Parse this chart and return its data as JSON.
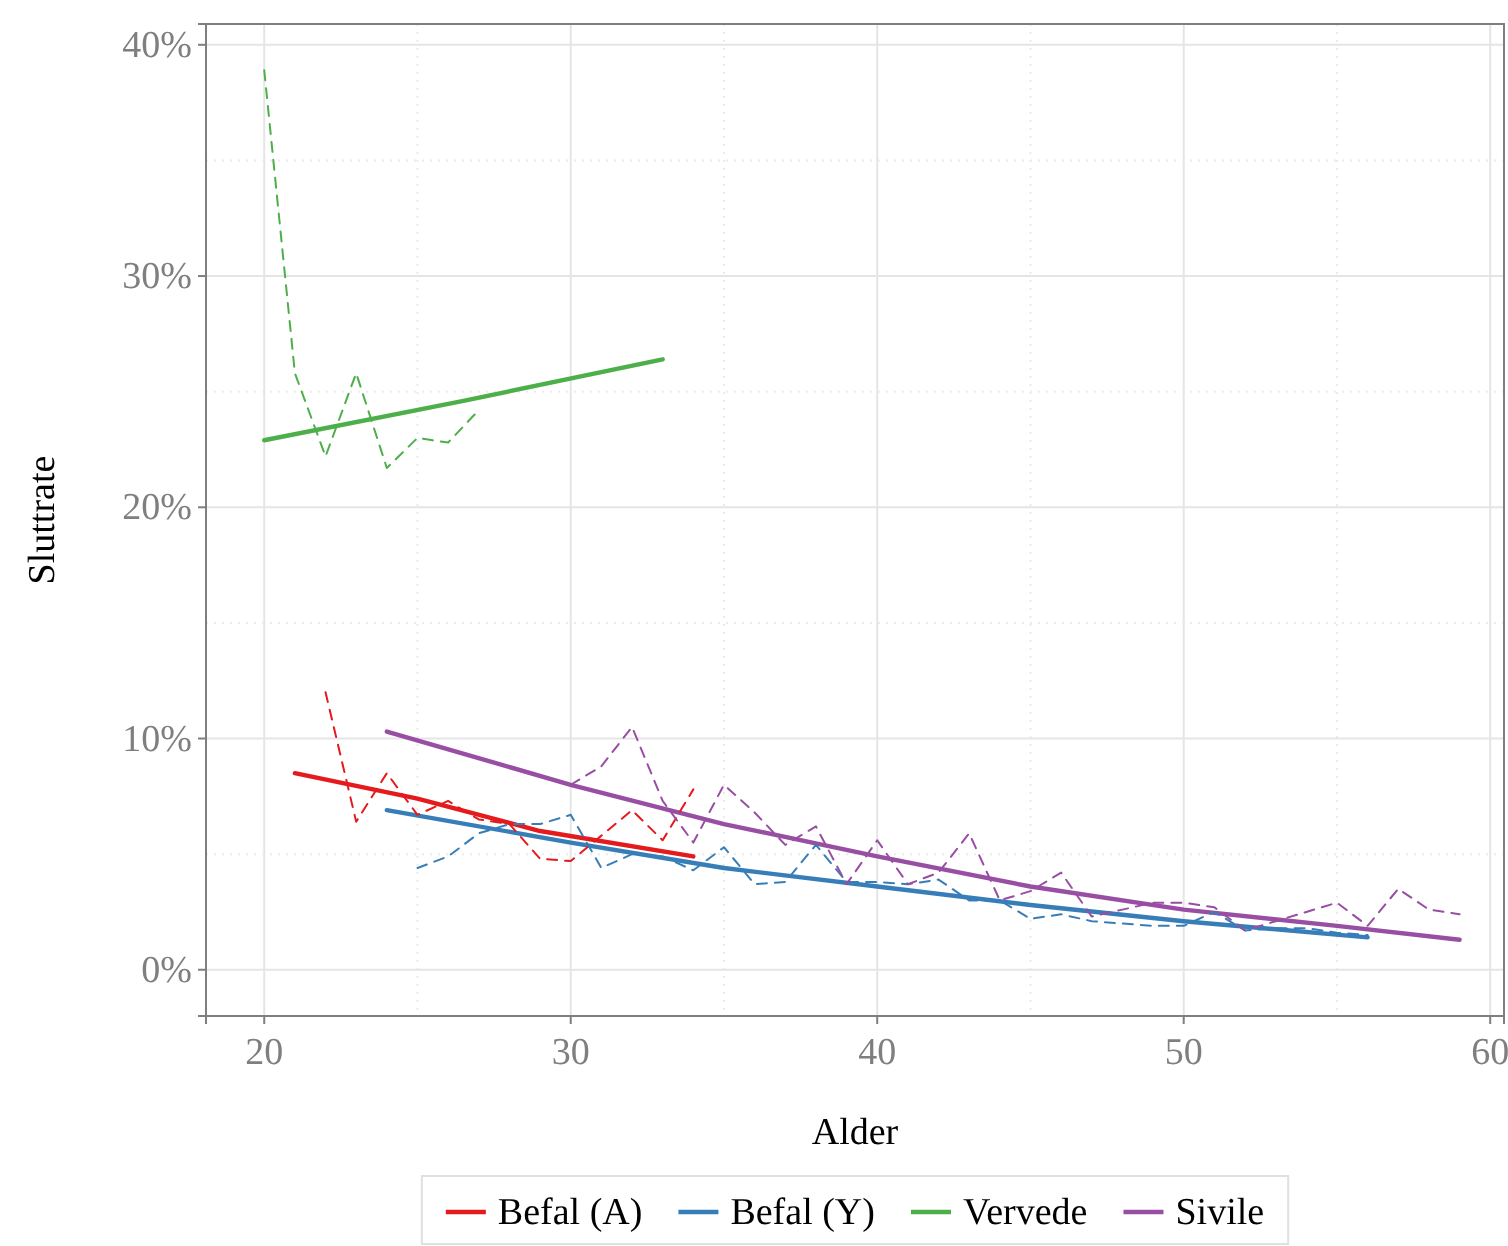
{
  "chart_data": {
    "type": "line",
    "xlabel": "Alder",
    "ylabel": "Sluttrate",
    "xlim": [
      18.1,
      60.45
    ],
    "xticks": [
      20,
      30,
      40,
      50,
      60
    ],
    "ylim": [
      -2.0,
      40.9
    ],
    "yticks": [
      {
        "value": 0,
        "label": "0%"
      },
      {
        "value": 10,
        "label": "10%"
      },
      {
        "value": 20,
        "label": "20%"
      },
      {
        "value": 30,
        "label": "30%"
      },
      {
        "value": 40,
        "label": "40%"
      }
    ],
    "grid": true,
    "legend": "bottom",
    "marker": "none",
    "series": [
      {
        "name": "Befal (A)",
        "color": "#e41a1c",
        "line_style": "solid",
        "x": [
          21,
          25,
          29,
          34
        ],
        "values": [
          8.5,
          7.4,
          6.0,
          4.9
        ]
      },
      {
        "name": "Befal (Y)",
        "color": "#377eb8",
        "line_style": "solid",
        "x": [
          24,
          30,
          35,
          40,
          45,
          50,
          56
        ],
        "values": [
          6.9,
          5.5,
          4.4,
          3.6,
          2.8,
          2.1,
          1.4
        ]
      },
      {
        "name": "Vervede",
        "color": "#4daf4a",
        "line_style": "solid",
        "x": [
          20,
          26.5,
          33
        ],
        "values": [
          22.9,
          24.6,
          26.4
        ]
      },
      {
        "name": "Sivile",
        "color": "#984ea3",
        "line_style": "solid",
        "x": [
          24,
          30,
          35,
          40,
          45,
          50,
          55,
          59
        ],
        "values": [
          10.3,
          8.0,
          6.3,
          4.9,
          3.6,
          2.6,
          1.9,
          1.3
        ]
      },
      {
        "color": "#e41a1c",
        "line_style": "dashed",
        "x": [
          22,
          23,
          24,
          25,
          26,
          27,
          28,
          29,
          30,
          31,
          32,
          33,
          34
        ],
        "values": [
          12.0,
          6.4,
          8.5,
          6.7,
          7.3,
          6.5,
          6.3,
          4.8,
          4.7,
          5.8,
          6.9,
          5.6,
          7.8
        ]
      },
      {
        "color": "#377eb8",
        "line_style": "dashed",
        "x": [
          25,
          26,
          27,
          28,
          29,
          30,
          31,
          32,
          33,
          34,
          35,
          36,
          37,
          38,
          39,
          40,
          41,
          42,
          43,
          44,
          45,
          46,
          47,
          48,
          49,
          50,
          51,
          52,
          53,
          54,
          55,
          56
        ],
        "values": [
          4.4,
          4.9,
          5.9,
          6.3,
          6.3,
          6.7,
          4.4,
          5.0,
          4.9,
          4.3,
          5.3,
          3.7,
          3.8,
          5.4,
          3.8,
          3.8,
          3.7,
          3.9,
          3.0,
          3.0,
          2.2,
          2.4,
          2.1,
          2.0,
          1.9,
          1.9,
          2.5,
          1.7,
          1.8,
          1.8,
          1.6,
          1.5
        ]
      },
      {
        "color": "#4daf4a",
        "line_style": "dashed",
        "x": [
          20,
          21,
          22,
          23,
          24,
          25,
          26,
          27
        ],
        "values": [
          38.9,
          25.8,
          22.2,
          25.8,
          21.7,
          23.0,
          22.8,
          24.2
        ]
      },
      {
        "color": "#984ea3",
        "line_style": "dashed",
        "x": [
          30,
          31,
          32,
          33,
          34,
          35,
          36,
          37,
          38,
          39,
          40,
          41,
          42,
          43,
          44,
          45,
          46,
          47,
          48,
          49,
          50,
          51,
          52,
          53,
          54,
          55,
          56,
          57,
          58,
          59
        ],
        "values": [
          8.0,
          8.8,
          10.5,
          7.3,
          5.5,
          8.0,
          6.8,
          5.4,
          6.2,
          3.7,
          5.6,
          3.7,
          4.2,
          5.9,
          3.0,
          3.4,
          4.2,
          2.3,
          2.6,
          2.9,
          2.9,
          2.7,
          1.7,
          2.1,
          2.5,
          2.9,
          1.9,
          3.5,
          2.6,
          2.4
        ]
      }
    ]
  }
}
